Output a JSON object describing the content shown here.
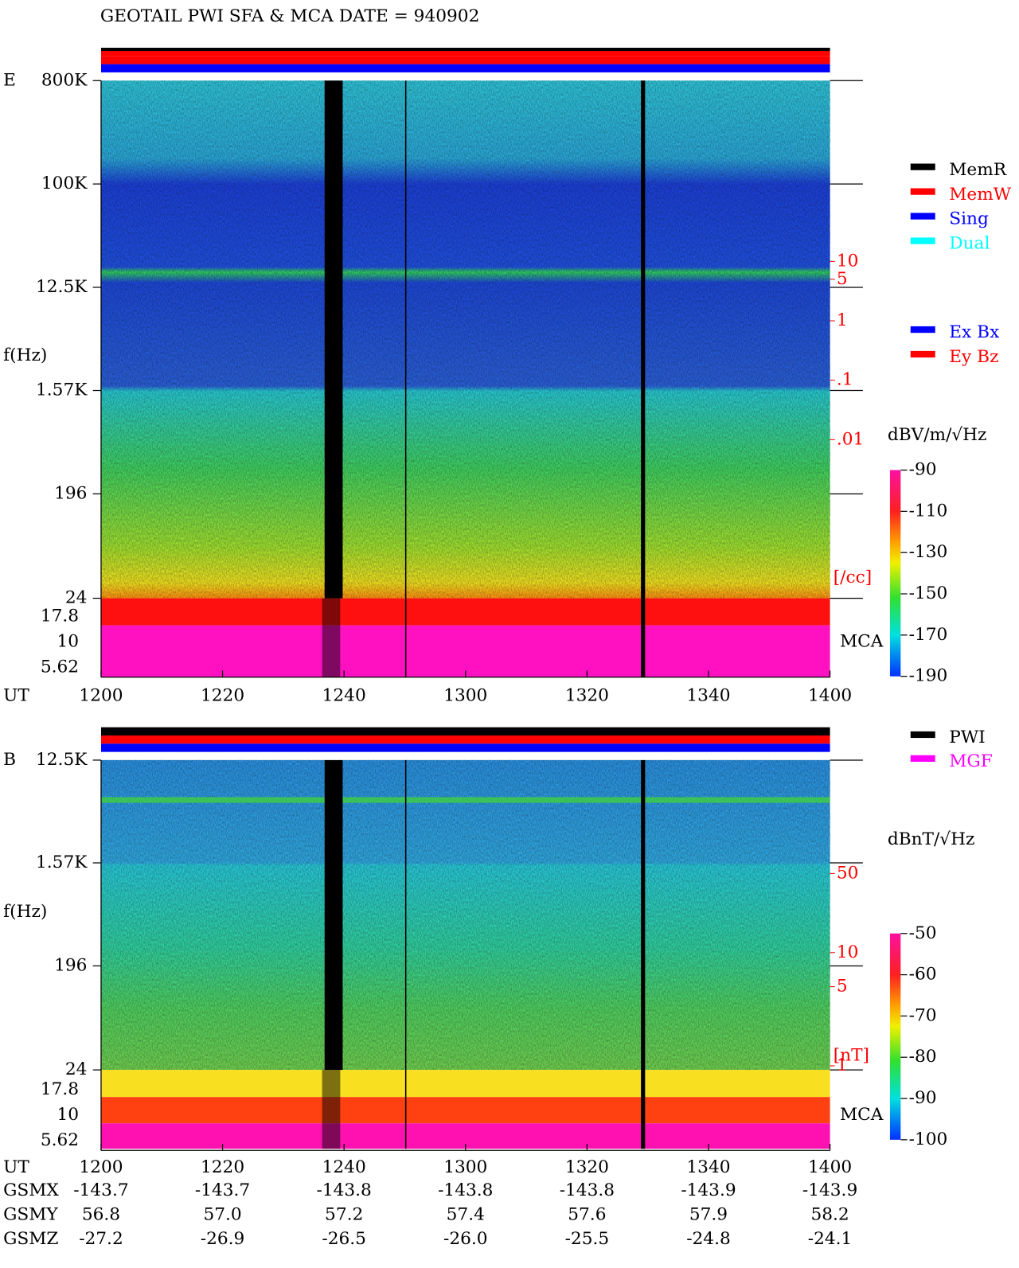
{
  "title": "GEOTAIL  PWI SFA & MCA   DATE = 940902",
  "x_label": "UT",
  "xticks": [
    "1200",
    "1220",
    "1240",
    "1300",
    "1320",
    "1340",
    "1400"
  ],
  "panels": [
    {
      "label": "E",
      "ylabel": "f(Hz)",
      "log_scale": true,
      "ylim": [
        24,
        800000
      ],
      "yticks": [
        {
          "value": 800000,
          "label": "800K"
        },
        {
          "value": 100000,
          "label": "100K"
        },
        {
          "value": 12500,
          "label": "12.5K"
        },
        {
          "value": 1570,
          "label": "1.57K"
        },
        196,
        24
      ],
      "mca_ticks": [
        "17.8",
        "10",
        "5.62"
      ],
      "mca_label": "MCA",
      "density_lim": [
        0.01,
        10
      ],
      "density_ticks": [
        10,
        5,
        1,
        {
          "value": 0.1,
          "label": ".1"
        },
        {
          "value": 0.01,
          "label": ".01"
        }
      ],
      "density_unit": "[/cc]",
      "colorbar_title": "dBV/m/√Hz",
      "colorbar_lim": [
        -190,
        -90
      ],
      "colorbar_ticks": [
        -90,
        -110,
        -130,
        -150,
        -170,
        -190
      ],
      "legend": [
        {
          "name": "MemR",
          "color": "#000000"
        },
        {
          "name": "MemW",
          "color": "#ff0000"
        },
        {
          "name": "Sing",
          "color": "#0000ff"
        },
        {
          "name": "Dual",
          "color": "#00ffff"
        }
      ],
      "legend2": [
        {
          "name": "Ex Bx",
          "color": "#0000ff"
        },
        {
          "name": "Ey Bz",
          "color": "#ff0000"
        }
      ]
    },
    {
      "label": "B",
      "ylabel": "f(Hz)",
      "log_scale": true,
      "ylim": [
        24,
        12500
      ],
      "yticks": [
        {
          "value": 12500,
          "label": "12.5K"
        },
        {
          "value": 1570,
          "label": "1.57K"
        },
        196,
        24
      ],
      "mca_ticks": [
        "17.8",
        "10",
        "5.62"
      ],
      "mca_label": "MCA",
      "density_lim": [
        1,
        50
      ],
      "density_ticks": [
        50,
        10,
        5,
        1
      ],
      "density_unit": "[nT]",
      "colorbar_title": "dBnT/√Hz",
      "colorbar_lim": [
        -100,
        -50
      ],
      "colorbar_ticks": [
        -50,
        -60,
        -70,
        -80,
        -90,
        -100
      ],
      "legend": [
        {
          "name": "PWI",
          "color": "#000000"
        },
        {
          "name": "MGF",
          "color": "#ff00ff"
        }
      ]
    }
  ],
  "orbit": [
    {
      "name": "GSMX",
      "values": [
        "-143.7",
        "-143.7",
        "-143.8",
        "-143.8",
        "-143.8",
        "-143.9",
        "-143.9"
      ]
    },
    {
      "name": "GSMY",
      "values": [
        "56.8",
        "57.0",
        "57.2",
        "57.4",
        "57.6",
        "57.9",
        "58.2"
      ]
    },
    {
      "name": "GSMZ",
      "values": [
        "-27.2",
        "-26.9",
        "-26.5",
        "-26.0",
        "-25.5",
        "-24.8",
        "-24.1"
      ]
    }
  ]
}
